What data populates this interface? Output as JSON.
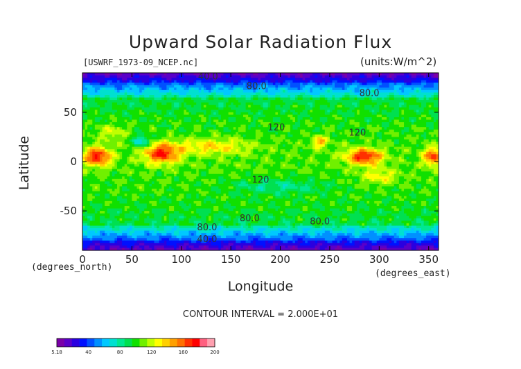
{
  "chart_data": {
    "type": "heatmap",
    "title": "Upward Solar Radiation Flux",
    "dataset_label": "[USWRF_1973-09_NCEP.nc]",
    "units_label": "(units:W/m^2)",
    "xlabel": "Longitude",
    "ylabel": "Latitude",
    "x_unit_label": "(degrees_north)",
    "y_unit_label": "(degrees_east)",
    "contour_interval_text": "CONTOUR INTERVAL = 2.000E+01",
    "xlim": [
      0,
      360
    ],
    "ylim": [
      -90,
      90
    ],
    "x_ticks": [
      0,
      50,
      100,
      150,
      200,
      250,
      300,
      350
    ],
    "y_ticks": [
      -50,
      0,
      50
    ],
    "colorbar": {
      "range": [
        5.18,
        200
      ],
      "tick_labels": [
        "5.18",
        "40",
        "80",
        "120",
        "160",
        "200"
      ],
      "colors": [
        "#7a00a8",
        "#5a00c8",
        "#2a00e0",
        "#0010ff",
        "#0050ff",
        "#0090ff",
        "#00c8ff",
        "#00e0d0",
        "#00e890",
        "#00e050",
        "#10e000",
        "#70f000",
        "#c0ff00",
        "#ffff00",
        "#ffd000",
        "#ffa000",
        "#ff7000",
        "#ff3000",
        "#ff0000",
        "#ff6080",
        "#ffa0b0"
      ]
    },
    "contour_labels": [
      {
        "text": "40.0",
        "lon": 127,
        "lat": 87
      },
      {
        "text": "80.0",
        "lon": 176,
        "lat": 77
      },
      {
        "text": "80.0",
        "lon": 290,
        "lat": 70
      },
      {
        "text": "120",
        "lon": 196,
        "lat": 35
      },
      {
        "text": "120",
        "lon": 278,
        "lat": 30
      },
      {
        "text": "120",
        "lon": 180,
        "lat": -18
      },
      {
        "text": "80.0",
        "lon": 169,
        "lat": -57
      },
      {
        "text": "80.0",
        "lon": 240,
        "lat": -60
      },
      {
        "text": "80.0",
        "lon": 126,
        "lat": -66
      },
      {
        "text": "40.0",
        "lon": 126,
        "lat": -78
      }
    ]
  }
}
